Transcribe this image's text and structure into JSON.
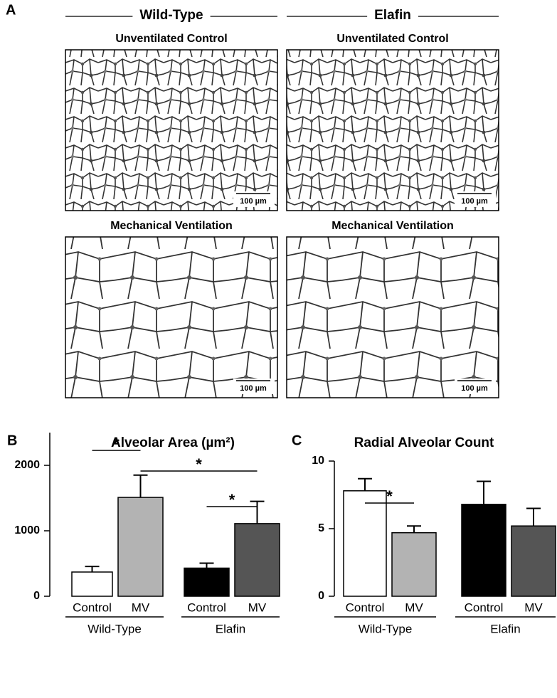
{
  "panel_a": {
    "label": "A",
    "columns": [
      "Wild-Type",
      "Elafin"
    ],
    "rows": [
      "Unventilated Control",
      "Mechanical Ventilation"
    ],
    "scale_bar": "100 µm"
  },
  "chart_data": [
    {
      "type": "bar",
      "panel": "B",
      "title": "Alveolar Area (µm²)",
      "categories": [
        "Control",
        "MV",
        "Control",
        "MV"
      ],
      "groups": [
        "Wild-Type",
        "Elafin"
      ],
      "values": [
        370,
        1510,
        430,
        1110
      ],
      "errors": [
        85,
        340,
        75,
        340
      ],
      "colors": [
        "#ffffff",
        "#b3b3b3",
        "#000000",
        "#555555"
      ],
      "ylim": [
        0,
        2500
      ],
      "yticks": [
        0,
        1000,
        2000
      ],
      "significance": [
        {
          "label": "*",
          "between": [
            0,
            1
          ]
        },
        {
          "label": "*",
          "between": [
            1,
            3
          ]
        },
        {
          "label": "*",
          "between": [
            2,
            3
          ]
        }
      ]
    },
    {
      "type": "bar",
      "panel": "C",
      "title": "Radial Alveolar Count",
      "categories": [
        "Control",
        "MV",
        "Control",
        "MV"
      ],
      "groups": [
        "Wild-Type",
        "Elafin"
      ],
      "values": [
        7.8,
        4.7,
        6.8,
        5.2
      ],
      "errors": [
        0.9,
        0.5,
        1.7,
        1.3
      ],
      "colors": [
        "#ffffff",
        "#b3b3b3",
        "#000000",
        "#555555"
      ],
      "ylim": [
        0,
        10
      ],
      "yticks": [
        0,
        5,
        10
      ],
      "significance": [
        {
          "label": "*",
          "between": [
            0,
            1
          ]
        }
      ]
    }
  ]
}
